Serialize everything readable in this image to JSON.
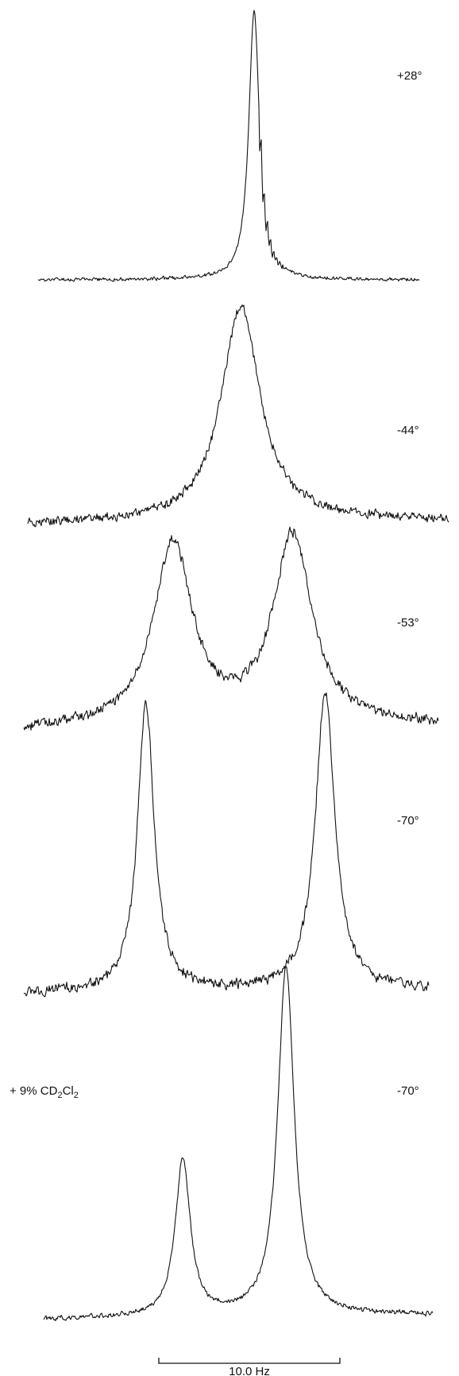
{
  "chart_data": {
    "type": "line",
    "title": "",
    "xlabel": "",
    "ylabel": "",
    "grid": false,
    "legend": "none",
    "scale_bar": {
      "label": "10.0 Hz",
      "length_hz": 10.0
    },
    "series": [
      {
        "name": "+28°",
        "peaks": [
          {
            "x_hz": 0.0,
            "height": 1.0,
            "width_hz": 0.7
          }
        ]
      },
      {
        "name": "-44°",
        "peaks": [
          {
            "x_hz": -0.3,
            "height": 1.0,
            "width_hz": 2.6
          }
        ]
      },
      {
        "name": "-53°",
        "peaks": [
          {
            "x_hz": -3.6,
            "height": 0.85,
            "width_hz": 2.6
          },
          {
            "x_hz": 3.0,
            "height": 0.88,
            "width_hz": 2.6
          }
        ]
      },
      {
        "name": "-70°",
        "peaks": [
          {
            "x_hz": -5.1,
            "height": 1.0,
            "width_hz": 1.1
          },
          {
            "x_hz": 4.8,
            "height": 1.03,
            "width_hz": 1.3
          }
        ]
      },
      {
        "name": "-70°",
        "annotation": "+ 9% CD2Cl2",
        "peaks": [
          {
            "x_hz": -3.5,
            "height": 0.45,
            "width_hz": 1.0
          },
          {
            "x_hz": 2.2,
            "height": 1.0,
            "width_hz": 1.1
          }
        ]
      }
    ]
  }
}
